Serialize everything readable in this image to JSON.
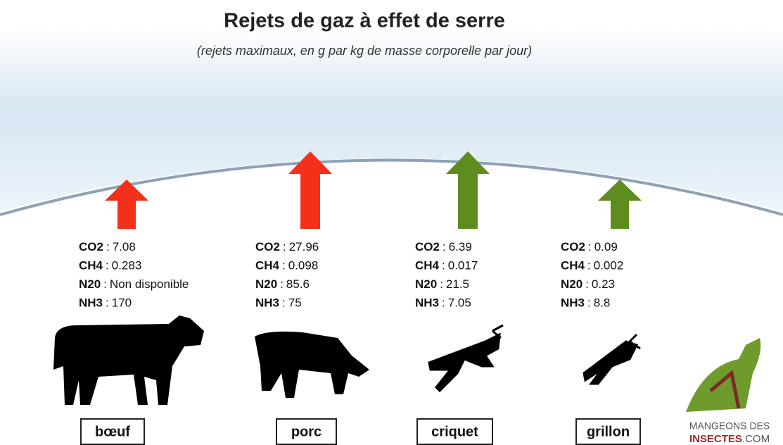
{
  "header": {
    "title": "Rejets de gaz à effet de serre",
    "subtitle": "(rejets maximaux, en g par kg de masse corporelle par jour)"
  },
  "separator": ":",
  "animals": [
    {
      "name": "bœuf",
      "stats": [
        {
          "gas": "CO2",
          "value": "7.08"
        },
        {
          "gas": "CH4",
          "value": "0.283"
        },
        {
          "gas": "N20",
          "value": "Non disponible"
        },
        {
          "gas": "NH3",
          "value": "170"
        }
      ]
    },
    {
      "name": "porc",
      "stats": [
        {
          "gas": "CO2",
          "value": "27.96"
        },
        {
          "gas": "CH4",
          "value": "0.098"
        },
        {
          "gas": "N20",
          "value": "85.6"
        },
        {
          "gas": "NH3",
          "value": "75"
        }
      ]
    },
    {
      "name": "criquet",
      "stats": [
        {
          "gas": "CO2",
          "value": "6.39"
        },
        {
          "gas": "CH4",
          "value": "0.017"
        },
        {
          "gas": "N20",
          "value": "21.5"
        },
        {
          "gas": "NH3",
          "value": "7.05"
        }
      ]
    },
    {
      "name": "grillon",
      "stats": [
        {
          "gas": "CO2",
          "value": "0.09"
        },
        {
          "gas": "CH4",
          "value": "0.002"
        },
        {
          "gas": "N20",
          "value": "0.23"
        },
        {
          "gas": "NH3",
          "value": "8.8"
        }
      ]
    }
  ],
  "logo": {
    "line1": "MANGEONS DES",
    "line2": "INSECTES",
    "suffix": ".COM"
  }
}
